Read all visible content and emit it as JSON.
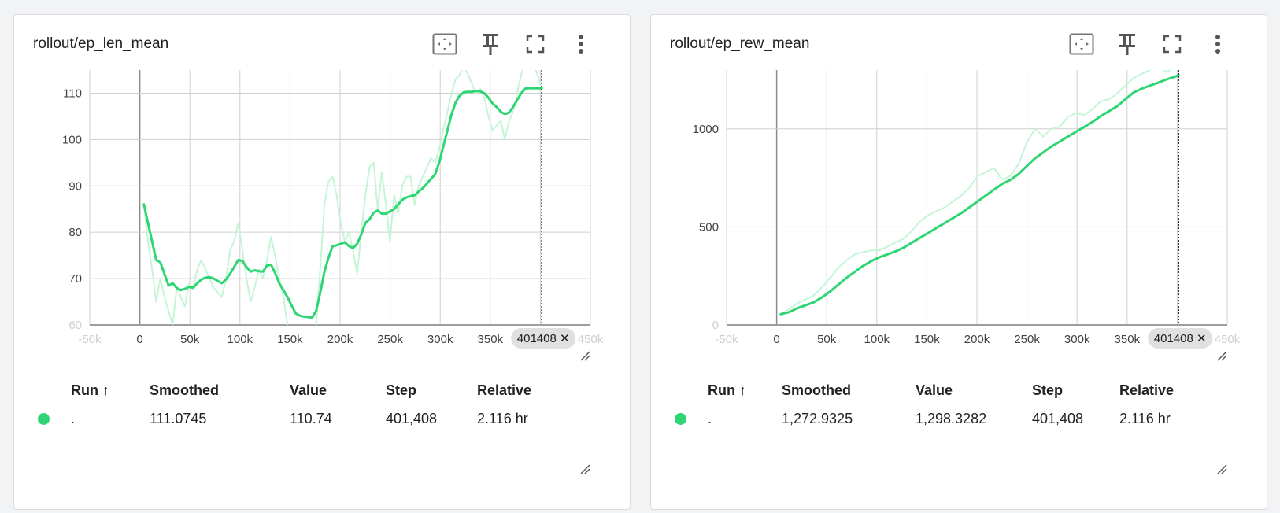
{
  "cards": [
    {
      "title": "rollout/ep_len_mean",
      "icons": [
        "fit-domain-icon",
        "pin-icon",
        "fullscreen-icon",
        "more-vert-icon"
      ],
      "table": {
        "headers": [
          "Run ↑",
          "Smoothed",
          "Value",
          "Step",
          "Relative"
        ],
        "row": {
          "run": ".",
          "smoothed": "111.0745",
          "value": "110.74",
          "step": "401,408",
          "relative": "2.116 hr"
        }
      },
      "step_chip": "401408 ✕"
    },
    {
      "title": "rollout/ep_rew_mean",
      "icons": [
        "fit-domain-icon",
        "pin-icon",
        "fullscreen-icon",
        "more-vert-icon"
      ],
      "table": {
        "headers": [
          "Run ↑",
          "Smoothed",
          "Value",
          "Step",
          "Relative"
        ],
        "row": {
          "run": ".",
          "smoothed": "1,272.9325",
          "value": "1,298.3282",
          "step": "401,408",
          "relative": "2.116 hr"
        }
      },
      "step_chip": "401408 ✕"
    }
  ],
  "colors": {
    "smoothed": "#2ed573",
    "raw": "#c4f5d6",
    "grid": "#d0d0d0",
    "axis": "#9e9e9e",
    "chip_bg": "#e0e0e0"
  },
  "chart_data": [
    {
      "type": "line",
      "title": "rollout/ep_len_mean",
      "xlabel": "",
      "ylabel": "",
      "xlim": [
        -50000,
        450000
      ],
      "ylim": [
        60,
        115
      ],
      "x_ticks": [
        -50000,
        0,
        50000,
        100000,
        150000,
        200000,
        250000,
        300000,
        350000,
        400000,
        450000
      ],
      "x_tick_labels": [
        "-50k",
        "0",
        "50k",
        "100k",
        "150k",
        "200k",
        "250k",
        "300k",
        "350k",
        "400k",
        "450k"
      ],
      "y_ticks": [
        60,
        70,
        80,
        90,
        100,
        110
      ],
      "y_tick_labels": [
        "60",
        "70",
        "80",
        "90",
        "100",
        "110"
      ],
      "grid": true,
      "cursor_step": 401408,
      "series": [
        {
          "name": "Value",
          "x": [
            4096,
            8192,
            12288,
            16384,
            20480,
            24576,
            28672,
            32768,
            36864,
            40960,
            45056,
            49152,
            53248,
            57344,
            61440,
            65536,
            69632,
            73728,
            77824,
            81920,
            86016,
            90112,
            94208,
            98304,
            102400,
            106496,
            110592,
            114688,
            118784,
            122880,
            126976,
            131072,
            135168,
            139264,
            143360,
            147456,
            151552,
            155648,
            159744,
            163840,
            167936,
            172032,
            176128,
            180224,
            184320,
            188416,
            192512,
            196608,
            200704,
            204800,
            208896,
            212992,
            217088,
            221184,
            225280,
            229376,
            233472,
            237568,
            241664,
            245760,
            249856,
            253952,
            258048,
            262144,
            266240,
            270336,
            274432,
            278528,
            282624,
            286720,
            290816,
            294912,
            299008,
            303104,
            307200,
            311296,
            315392,
            319488,
            323584,
            327680,
            331776,
            335872,
            339968,
            344064,
            348160,
            352256,
            356352,
            360448,
            364544,
            368640,
            372736,
            376832,
            380928,
            385024,
            389120,
            393216,
            397312,
            401408
          ],
          "y": [
            86,
            78,
            72,
            65,
            70,
            66,
            63,
            60,
            68,
            66,
            64,
            69,
            68,
            72,
            74,
            72,
            70,
            68,
            67,
            66,
            70,
            76,
            78,
            82,
            76,
            70,
            65,
            68,
            72,
            70,
            74,
            79,
            75,
            70,
            66,
            60,
            58,
            56,
            55,
            54,
            55,
            57,
            60,
            72,
            86,
            91,
            92,
            88,
            82,
            78,
            80,
            76,
            71,
            80,
            88,
            94,
            95,
            85,
            93,
            86,
            78,
            88,
            84,
            90,
            92,
            92,
            86,
            90,
            92,
            94,
            96,
            95,
            98,
            102,
            106,
            110,
            113,
            114,
            116,
            114,
            112,
            110,
            111,
            109,
            105,
            102,
            103,
            104,
            100,
            104,
            106,
            110,
            114,
            118,
            117,
            116,
            114,
            110.74
          ]
        },
        {
          "name": "Smoothed",
          "x": [
            4096,
            8192,
            12288,
            16384,
            20480,
            24576,
            28672,
            32768,
            36864,
            40960,
            45056,
            49152,
            53248,
            57344,
            61440,
            65536,
            69632,
            73728,
            77824,
            81920,
            86016,
            90112,
            94208,
            98304,
            102400,
            106496,
            110592,
            114688,
            118784,
            122880,
            126976,
            131072,
            135168,
            139264,
            143360,
            147456,
            151552,
            155648,
            159744,
            163840,
            167936,
            172032,
            176128,
            180224,
            184320,
            188416,
            192512,
            196608,
            200704,
            204800,
            208896,
            212992,
            217088,
            221184,
            225280,
            229376,
            233472,
            237568,
            241664,
            245760,
            249856,
            253952,
            258048,
            262144,
            266240,
            270336,
            274432,
            278528,
            282624,
            286720,
            290816,
            294912,
            299008,
            303104,
            307200,
            311296,
            315392,
            319488,
            323584,
            327680,
            331776,
            335872,
            339968,
            344064,
            348160,
            352256,
            356352,
            360448,
            364544,
            368640,
            372736,
            376832,
            380928,
            385024,
            389120,
            393216,
            397312,
            401408
          ],
          "y": [
            86,
            82,
            78,
            74,
            73.5,
            71,
            68.5,
            69,
            68,
            67.5,
            67.8,
            68.2,
            68,
            69,
            69.8,
            70.2,
            70.3,
            70,
            69.5,
            69,
            69.8,
            71,
            72.5,
            74,
            73.8,
            72.5,
            71.5,
            71.8,
            71.6,
            71.5,
            72.8,
            73,
            71.2,
            69,
            67.5,
            66,
            64.2,
            62.5,
            62,
            61.8,
            61.7,
            61.6,
            63,
            67,
            71.5,
            74.5,
            77,
            77.2,
            77.5,
            77.8,
            77,
            76.6,
            77.5,
            79.5,
            82,
            82.8,
            84.2,
            84.7,
            84,
            84,
            84.5,
            85,
            86,
            87,
            87.5,
            87.8,
            88,
            88.8,
            89.5,
            90.5,
            91.5,
            92.5,
            95,
            98.5,
            102,
            105.5,
            108,
            109.5,
            110.2,
            110.3,
            110.3,
            110.5,
            110.4,
            110,
            109,
            107.8,
            107,
            106,
            105.5,
            105.8,
            107,
            108.5,
            110,
            111,
            111.1,
            111.08,
            111.07,
            111.0745
          ]
        }
      ]
    },
    {
      "type": "line",
      "title": "rollout/ep_rew_mean",
      "xlabel": "",
      "ylabel": "",
      "xlim": [
        -50000,
        450000
      ],
      "ylim": [
        0,
        1300
      ],
      "x_ticks": [
        -50000,
        0,
        50000,
        100000,
        150000,
        200000,
        250000,
        300000,
        350000,
        400000,
        450000
      ],
      "x_tick_labels": [
        "-50k",
        "0",
        "50k",
        "100k",
        "150k",
        "200k",
        "250k",
        "300k",
        "350k",
        "400k",
        "450k"
      ],
      "y_ticks": [
        0,
        500,
        1000
      ],
      "y_tick_labels": [
        "0",
        "500",
        "1000"
      ],
      "grid": true,
      "cursor_step": 401408,
      "series": [
        {
          "name": "Value",
          "x": [
            4096,
            12288,
            20480,
            28672,
            36864,
            45056,
            53248,
            61440,
            69632,
            77824,
            86016,
            94208,
            102400,
            110592,
            118784,
            126976,
            135168,
            143360,
            151552,
            159744,
            167936,
            176128,
            184320,
            192512,
            200704,
            208896,
            217088,
            225280,
            233472,
            241664,
            249856,
            258048,
            266240,
            274432,
            282624,
            290816,
            299008,
            307200,
            315392,
            323584,
            331776,
            339968,
            348160,
            356352,
            364544,
            372736,
            380928,
            389120,
            397312,
            401408
          ],
          "y": [
            55,
            80,
            110,
            130,
            150,
            190,
            240,
            290,
            330,
            360,
            370,
            380,
            380,
            400,
            420,
            440,
            480,
            530,
            560,
            580,
            600,
            630,
            660,
            700,
            760,
            780,
            800,
            740,
            760,
            820,
            930,
            1000,
            960,
            1000,
            1010,
            1060,
            1080,
            1070,
            1100,
            1140,
            1150,
            1180,
            1220,
            1260,
            1280,
            1300,
            1320,
            1290,
            1310,
            1298.3282
          ]
        },
        {
          "name": "Smoothed",
          "x": [
            4096,
            12288,
            20480,
            28672,
            36864,
            45056,
            53248,
            61440,
            69632,
            77824,
            86016,
            94208,
            102400,
            110592,
            118784,
            126976,
            135168,
            143360,
            151552,
            159744,
            167936,
            176128,
            184320,
            192512,
            200704,
            208896,
            217088,
            225280,
            233472,
            241664,
            249856,
            258048,
            266240,
            274432,
            282624,
            290816,
            299008,
            307200,
            315392,
            323584,
            331776,
            339968,
            348160,
            356352,
            364544,
            372736,
            380928,
            389120,
            397312,
            401408
          ],
          "y": [
            55,
            65,
            85,
            100,
            115,
            140,
            170,
            205,
            240,
            270,
            300,
            325,
            345,
            360,
            375,
            395,
            420,
            445,
            470,
            495,
            520,
            545,
            570,
            600,
            630,
            660,
            690,
            720,
            740,
            770,
            810,
            850,
            880,
            910,
            935,
            960,
            985,
            1010,
            1035,
            1065,
            1090,
            1115,
            1150,
            1185,
            1205,
            1220,
            1235,
            1252,
            1265,
            1272.9325
          ]
        }
      ]
    }
  ]
}
